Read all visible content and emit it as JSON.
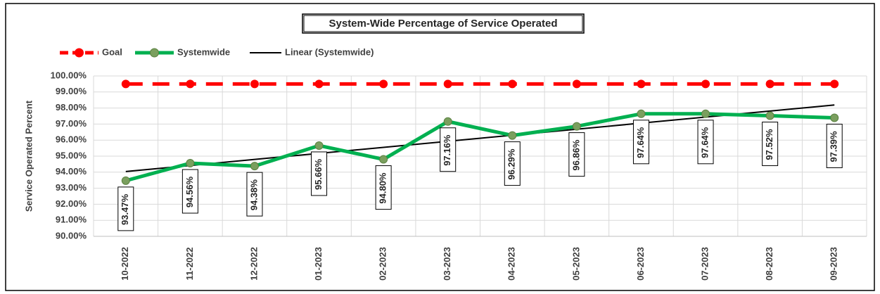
{
  "chart_data": {
    "type": "line",
    "title": "System-Wide Percentage of Service Operated",
    "y_label": "Service Operated Percent",
    "categories": [
      "10-2022",
      "11-2022",
      "12-2022",
      "01-2023",
      "02-2023",
      "03-2023",
      "04-2023",
      "05-2023",
      "06-2023",
      "07-2023",
      "08-2023",
      "09-2023"
    ],
    "series": [
      {
        "name": "Goal",
        "color": "#ff0000",
        "marker_color": "#ff0000",
        "dashed": true,
        "values": [
          99.5,
          99.5,
          99.5,
          99.5,
          99.5,
          99.5,
          99.5,
          99.5,
          99.5,
          99.5,
          99.5,
          99.5
        ]
      },
      {
        "name": "Systemwide",
        "color": "#00b050",
        "marker_color": "#7a9f5e",
        "values": [
          93.47,
          94.56,
          94.38,
          95.66,
          94.8,
          97.16,
          96.29,
          96.86,
          97.64,
          97.64,
          97.52,
          97.39
        ],
        "value_labels": [
          "93.47%",
          "94.56%",
          "94.38%",
          "95.66%",
          "94.80%",
          "97.16%",
          "96.29%",
          "96.86%",
          "97.64%",
          "97.64%",
          "97.52%",
          "97.39%"
        ]
      },
      {
        "name": "Linear (Systemwide)",
        "color": "#000000",
        "values": [
          94.04,
          94.42,
          94.79,
          95.17,
          95.55,
          95.93,
          96.3,
          96.68,
          97.06,
          97.43,
          97.81,
          98.19
        ]
      }
    ],
    "ylim": [
      90,
      100
    ],
    "yticks": [
      {
        "value": 90,
        "label": "90.00%"
      },
      {
        "value": 91,
        "label": "91.00%"
      },
      {
        "value": 92,
        "label": "92.00%"
      },
      {
        "value": 93,
        "label": "93.00%"
      },
      {
        "value": 94,
        "label": "94.00%"
      },
      {
        "value": 95,
        "label": "95.00%"
      },
      {
        "value": 96,
        "label": "96.00%"
      },
      {
        "value": 97,
        "label": "97.00%"
      },
      {
        "value": 98,
        "label": "98.00%"
      },
      {
        "value": 99,
        "label": "99.00%"
      },
      {
        "value": 100,
        "label": "100.00%"
      }
    ],
    "grid": true,
    "legend": "top-left"
  }
}
